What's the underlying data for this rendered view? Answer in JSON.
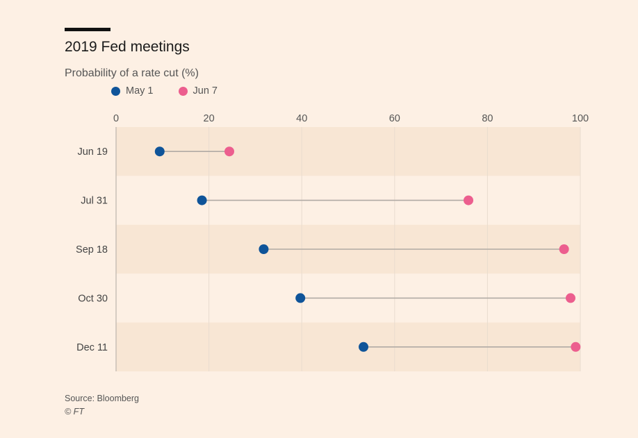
{
  "chart_data": {
    "type": "dot",
    "title": "2019 Fed meetings",
    "subtitle": "Probability of a rate cut (%)",
    "xlim": [
      0,
      100
    ],
    "x_ticks": [
      0,
      20,
      40,
      60,
      80,
      100
    ],
    "categories": [
      "Jun 19",
      "Jul 31",
      "Sep 18",
      "Oct 30",
      "Dec 11"
    ],
    "series": [
      {
        "name": "May 1",
        "color": "#0f5499",
        "values": [
          9.4,
          18.5,
          31.8,
          39.7,
          53.3
        ]
      },
      {
        "name": "Jun 7",
        "color": "#ec5e8e",
        "values": [
          24.4,
          75.9,
          96.5,
          97.9,
          99.0
        ]
      }
    ],
    "connector_color": "#b0aaa4",
    "band_color": "#f8e6d4",
    "grid": true,
    "legend_position": "top-left",
    "source": "Source: Bloomberg",
    "copyright": "© FT"
  }
}
